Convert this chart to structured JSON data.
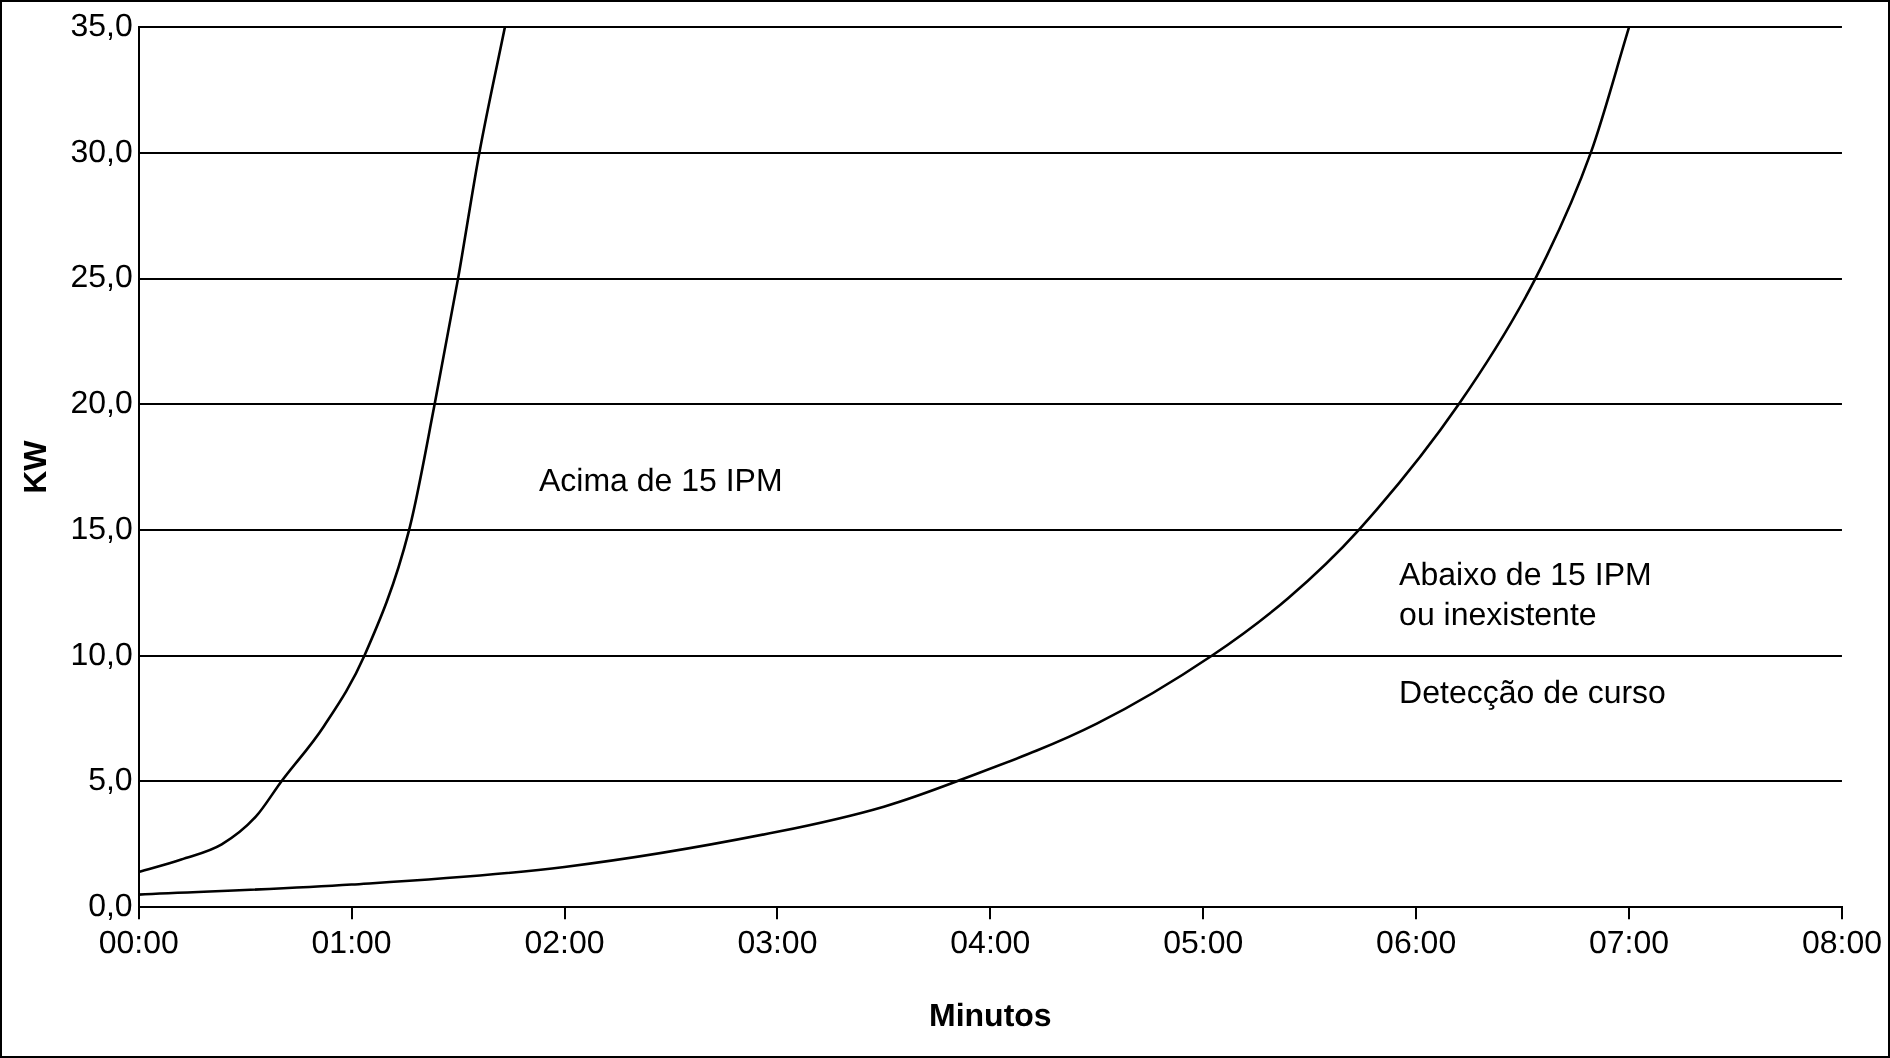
{
  "chart_data": {
    "type": "line",
    "xlabel": "Minutos",
    "ylabel": "KW",
    "xlim": [
      0,
      8
    ],
    "xticks": [
      {
        "value": 0,
        "label": "00:00"
      },
      {
        "value": 1,
        "label": "01:00"
      },
      {
        "value": 2,
        "label": "02:00"
      },
      {
        "value": 3,
        "label": "03:00"
      },
      {
        "value": 4,
        "label": "04:00"
      },
      {
        "value": 5,
        "label": "05:00"
      },
      {
        "value": 6,
        "label": "06:00"
      },
      {
        "value": 7,
        "label": "07:00"
      },
      {
        "value": 8,
        "label": "08:00"
      }
    ],
    "ylim": [
      0,
      35
    ],
    "yticks": [
      {
        "value": 0,
        "label": "0,0"
      },
      {
        "value": 5,
        "label": "5,0"
      },
      {
        "value": 10,
        "label": "10,0"
      },
      {
        "value": 15,
        "label": "15,0"
      },
      {
        "value": 20,
        "label": "20,0"
      },
      {
        "value": 25,
        "label": "25,0"
      },
      {
        "value": 30,
        "label": "30,0"
      },
      {
        "value": 35,
        "label": "35,0"
      }
    ],
    "grid": "y",
    "marker": "none",
    "line_style": "solid",
    "series": [
      {
        "color": "#000000",
        "x": [
          0,
          0.2,
          0.39,
          0.55,
          0.67,
          0.87,
          1.06,
          1.27,
          1.39,
          1.5,
          1.6,
          1.72
        ],
        "values": [
          1.4,
          1.9,
          2.5,
          3.6,
          5,
          7.2,
          10,
          15,
          20,
          25,
          30,
          35
        ]
      },
      {
        "color": "#000000",
        "x": [
          0,
          1,
          2,
          3,
          3.5,
          3.84,
          4.5,
          5.04,
          5.4,
          5.73,
          6.2,
          6.56,
          6.82,
          7.0
        ],
        "values": [
          0.5,
          0.9,
          1.6,
          3,
          4,
          5,
          7.3,
          10,
          12.3,
          15,
          20,
          25,
          30,
          35
        ]
      }
    ],
    "annotations": [
      "Acima de 15 IPM",
      "Abaixo de 15 IPM\nou inexistente",
      "Detecção de curso"
    ]
  }
}
